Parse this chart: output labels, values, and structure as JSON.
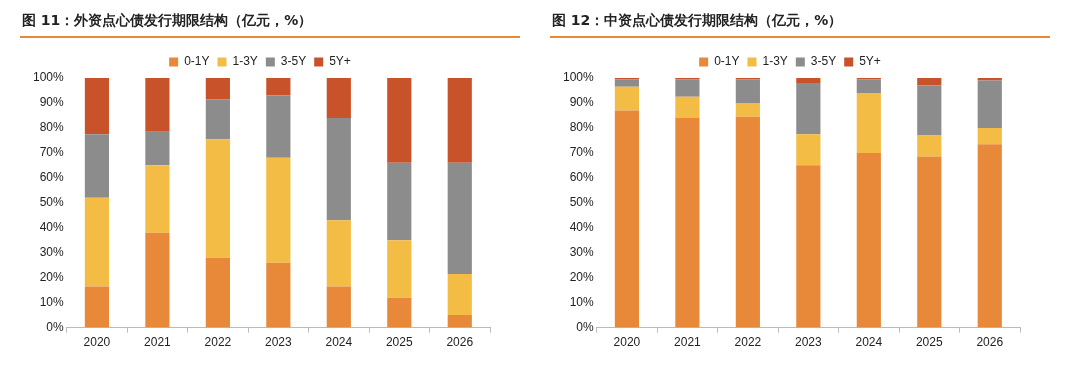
{
  "chart_data": [
    {
      "type": "bar",
      "title": "图 11：外资点心债发行期限结构（亿元，%）",
      "stacked": true,
      "legend": "top",
      "grid": false,
      "categories": [
        "2020",
        "2021",
        "2022",
        "2023",
        "2024",
        "2025",
        "2026"
      ],
      "series": [
        {
          "name": "0-1Y",
          "color": "#e8893a",
          "values": [
            16.5,
            38,
            28,
            26,
            16.5,
            12,
            5
          ]
        },
        {
          "name": "1-3Y",
          "color": "#f3bc45",
          "values": [
            35.5,
            27,
            47.5,
            42,
            26.5,
            23,
            16.5
          ]
        },
        {
          "name": "3-5Y",
          "color": "#8c8c8c",
          "values": [
            25.5,
            13.5,
            16,
            25,
            41,
            31,
            44.5
          ]
        },
        {
          "name": "5Y+",
          "color": "#c8532a",
          "values": [
            22.5,
            21.5,
            8.5,
            7,
            16,
            34,
            34
          ]
        }
      ],
      "ylim": [
        0,
        100
      ],
      "yticks": [
        {
          "value": 0,
          "label": "0%"
        },
        {
          "value": 10,
          "label": "10%"
        },
        {
          "value": 20,
          "label": "20%"
        },
        {
          "value": 30,
          "label": "30%"
        },
        {
          "value": 40,
          "label": "40%"
        },
        {
          "value": 50,
          "label": "50%"
        },
        {
          "value": 60,
          "label": "60%"
        },
        {
          "value": 70,
          "label": "70%"
        },
        {
          "value": 80,
          "label": "80%"
        },
        {
          "value": 90,
          "label": "90%"
        },
        {
          "value": 100,
          "label": "100%"
        }
      ]
    },
    {
      "type": "bar",
      "title": "图 12：中资点心债发行期限结构（亿元，%）",
      "stacked": true,
      "legend": "top",
      "grid": false,
      "categories": [
        "2020",
        "2021",
        "2022",
        "2023",
        "2024",
        "2025",
        "2026"
      ],
      "series": [
        {
          "name": "0-1Y",
          "color": "#e8893a",
          "values": [
            87,
            84,
            84.5,
            65,
            70,
            68.5,
            73.5
          ]
        },
        {
          "name": "1-3Y",
          "color": "#f3bc45",
          "values": [
            9.5,
            8.5,
            5.5,
            12.5,
            24,
            8.5,
            6.5
          ]
        },
        {
          "name": "3-5Y",
          "color": "#8c8c8c",
          "values": [
            3,
            7,
            9.5,
            20.5,
            5.5,
            20,
            19
          ]
        },
        {
          "name": "5Y+",
          "color": "#c8532a",
          "values": [
            0.5,
            0.5,
            0.5,
            2,
            0.5,
            3,
            1
          ]
        }
      ],
      "ylim": [
        0,
        100
      ],
      "yticks": [
        {
          "value": 0,
          "label": "0%"
        },
        {
          "value": 10,
          "label": "10%"
        },
        {
          "value": 20,
          "label": "20%"
        },
        {
          "value": 30,
          "label": "30%"
        },
        {
          "value": 40,
          "label": "40%"
        },
        {
          "value": 50,
          "label": "50%"
        },
        {
          "value": 60,
          "label": "60%"
        },
        {
          "value": 70,
          "label": "70%"
        },
        {
          "value": 80,
          "label": "80%"
        },
        {
          "value": 90,
          "label": "90%"
        },
        {
          "value": 100,
          "label": "100%"
        }
      ]
    }
  ]
}
